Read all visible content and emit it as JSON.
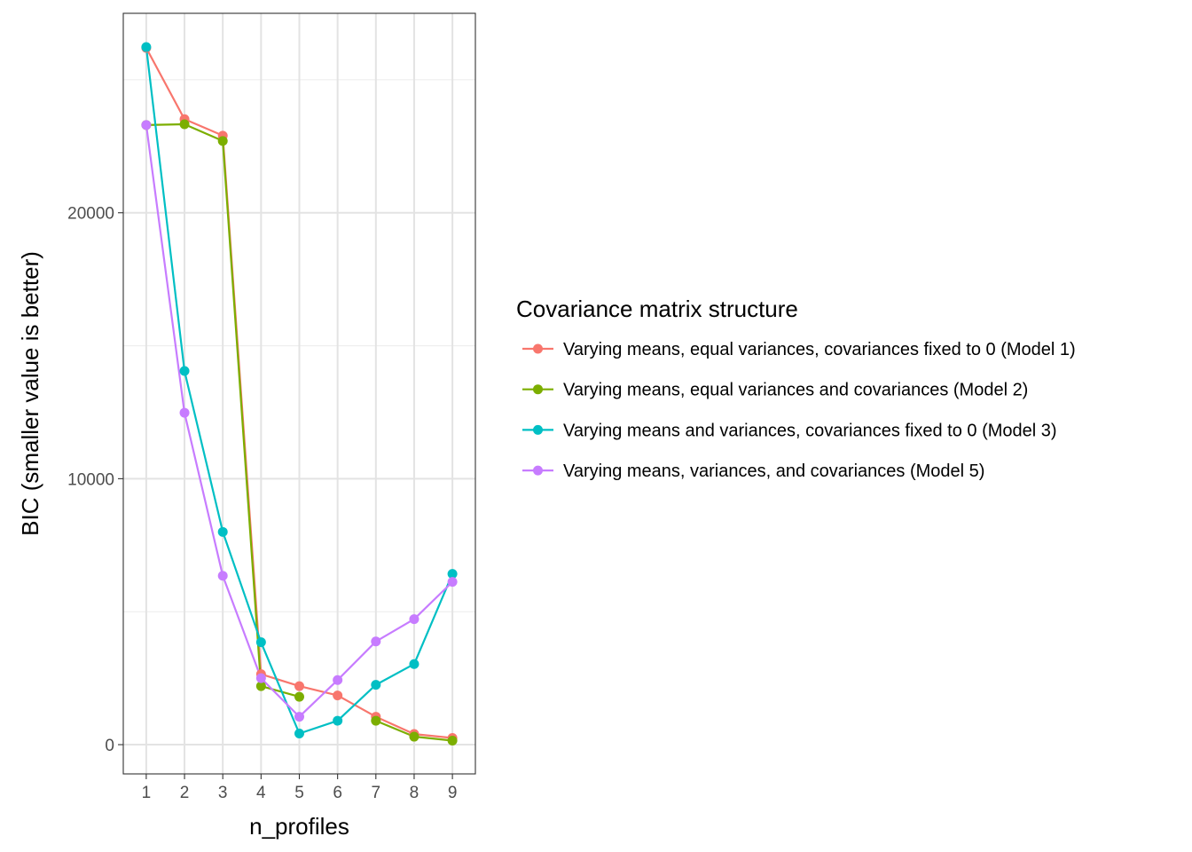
{
  "chart_data": {
    "type": "line",
    "xlabel": "n_profiles",
    "ylabel": "BIC (smaller value is better)",
    "x": [
      1,
      2,
      3,
      4,
      5,
      6,
      7,
      8,
      9
    ],
    "x_ticks": [
      1,
      2,
      3,
      4,
      5,
      6,
      7,
      8,
      9
    ],
    "y_ticks": [
      0,
      10000,
      20000
    ],
    "xlim": [
      0.4,
      9.6
    ],
    "ylim": [
      -1100,
      27500
    ],
    "grid": true,
    "legend": {
      "title": "Covariance matrix structure",
      "placement": "right"
    },
    "series": [
      {
        "name": "Varying means, equal variances, covariances fixed to 0 (Model 1)",
        "color": "#F8766D",
        "values": [
          26200,
          23520,
          22900,
          2650,
          2200,
          1850,
          1050,
          400,
          250
        ]
      },
      {
        "name": "Varying means, equal variances and covariances (Model 2)",
        "color": "#7CAE00",
        "values": [
          23300,
          23330,
          22700,
          2200,
          1800,
          null,
          900,
          300,
          150
        ]
      },
      {
        "name": "Varying means and variances, covariances fixed to 0 (Model 3)",
        "color": "#00BFC4",
        "values": [
          26230,
          14050,
          8000,
          3850,
          420,
          900,
          2250,
          3030,
          6420
        ]
      },
      {
        "name": "Varying means, variances, and covariances (Model 5)",
        "color": "#C77CFF",
        "values": [
          23300,
          12480,
          6350,
          2500,
          1050,
          2430,
          3880,
          4720,
          6120
        ]
      }
    ]
  }
}
